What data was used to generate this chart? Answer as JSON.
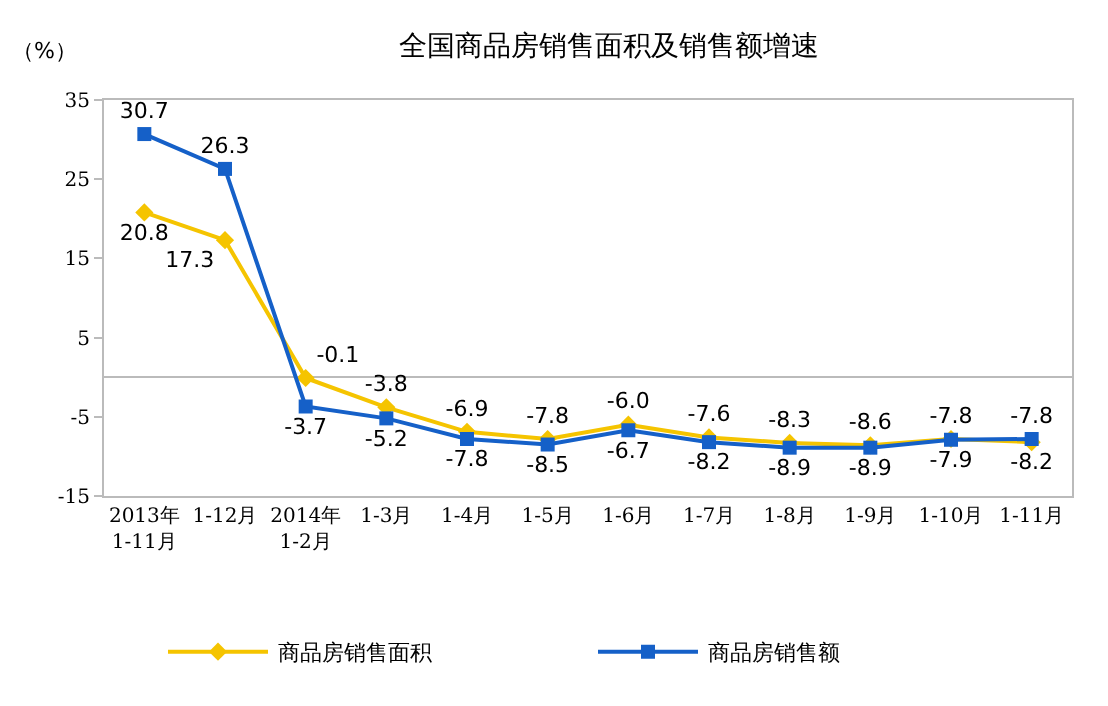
{
  "chart_data": {
    "type": "line",
    "title": "全国商品房销售面积及销售额增速",
    "ylabel": "（%）",
    "categories": [
      "2013年\n1-11月",
      "1-12月",
      "2014年\n1-2月",
      "1-3月",
      "1-4月",
      "1-5月",
      "1-6月",
      "1-7月",
      "1-8月",
      "1-9月",
      "1-10月",
      "1-11月"
    ],
    "series": [
      {
        "name": "商品房销售面积",
        "color": "#f5c400",
        "marker": "diamond",
        "values": [
          20.8,
          17.3,
          -0.1,
          -3.8,
          -6.9,
          -7.8,
          -6.0,
          -7.6,
          -8.3,
          -8.6,
          -7.8,
          -8.2
        ],
        "value_labels": [
          "20.8",
          "17.3",
          "-0.1",
          "-3.8",
          "-6.9",
          "-7.8",
          "-6.0",
          "-7.6",
          "-8.3",
          "-8.6",
          "-7.8",
          "-8.2"
        ]
      },
      {
        "name": "商品房销售额",
        "color": "#1560c8",
        "marker": "square",
        "values": [
          30.7,
          26.3,
          -3.7,
          -5.2,
          -7.8,
          -8.5,
          -6.7,
          -8.2,
          -8.9,
          -8.9,
          -7.9,
          -7.8
        ],
        "value_labels": [
          "30.7",
          "26.3",
          "-3.7",
          "-5.2",
          "-7.8",
          "-8.5",
          "-6.7",
          "-8.2",
          "-8.9",
          "-8.9",
          "-7.9",
          "-7.8"
        ]
      }
    ],
    "ylim": [
      -15,
      35
    ],
    "yticks": [
      -15,
      -5,
      5,
      15,
      25,
      35
    ],
    "grid": false,
    "legend": "bottom",
    "line_style": "solid"
  }
}
